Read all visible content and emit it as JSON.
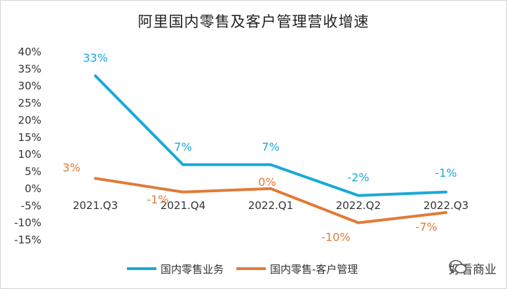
{
  "chart_data": {
    "type": "line",
    "title": "阿里国内零售及客户管理营收增速",
    "categories": [
      "2021.Q3",
      "2021.Q4",
      "2022.Q1",
      "2022.Q2",
      "2022.Q3"
    ],
    "y_ticks": [
      "40%",
      "35%",
      "30%",
      "25%",
      "20%",
      "15%",
      "10%",
      "5%",
      "0%",
      "-5%",
      "-10%",
      "-15%"
    ],
    "ylim": [
      -15,
      40
    ],
    "grid": false,
    "legend_position": "bottom",
    "series": [
      {
        "name": "国内零售业务",
        "values": [
          33,
          7,
          7,
          -2,
          -1
        ],
        "labels": [
          "33%",
          "7%",
          "7%",
          "-2%",
          "-1%"
        ],
        "color": "#1aa9d9"
      },
      {
        "name": "国内零售-客户管理",
        "values": [
          3,
          -1,
          0,
          -10,
          -7
        ],
        "labels": [
          "3%",
          "-1%",
          "0%",
          "-10%",
          "-7%"
        ],
        "color": "#e07b39"
      }
    ]
  },
  "watermark": {
    "text": "好看商业",
    "icon": "wechat-icon"
  }
}
